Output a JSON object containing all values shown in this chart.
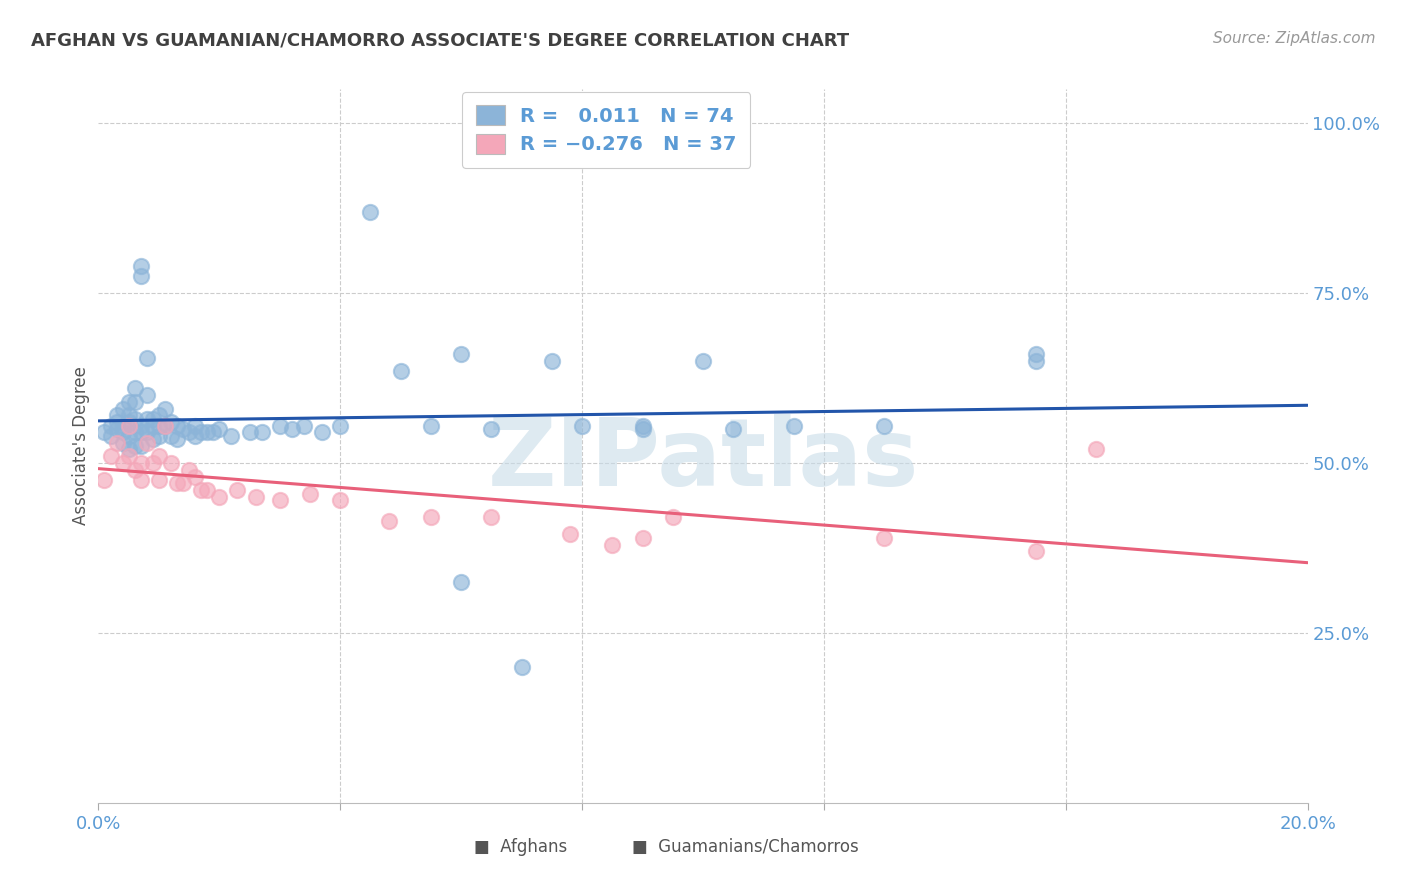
{
  "title": "AFGHAN VS GUAMANIAN/CHAMORRO ASSOCIATE'S DEGREE CORRELATION CHART",
  "source": "Source: ZipAtlas.com",
  "ylabel": "Associate's Degree",
  "legend_afghan": {
    "R": "0.011",
    "N": "74"
  },
  "legend_guam": {
    "R": "-0.276",
    "N": "37"
  },
  "color_afghan": "#8CB4D8",
  "color_guam": "#F4A7B9",
  "color_trend_afghan": "#2255AA",
  "color_trend_guam": "#E8607A",
  "color_axis_labels": "#5B9BD5",
  "color_title": "#404040",
  "watermark_color": "#D8E8F0",
  "xlim": [
    0.0,
    0.2
  ],
  "ylim": [
    0.0,
    1.05
  ],
  "afghan_x": [
    0.001,
    0.002,
    0.002,
    0.003,
    0.003,
    0.003,
    0.004,
    0.004,
    0.004,
    0.004,
    0.005,
    0.005,
    0.005,
    0.005,
    0.005,
    0.006,
    0.006,
    0.006,
    0.006,
    0.006,
    0.007,
    0.007,
    0.007,
    0.007,
    0.007,
    0.008,
    0.008,
    0.008,
    0.008,
    0.009,
    0.009,
    0.009,
    0.01,
    0.01,
    0.01,
    0.011,
    0.011,
    0.012,
    0.012,
    0.013,
    0.013,
    0.014,
    0.015,
    0.016,
    0.016,
    0.017,
    0.018,
    0.019,
    0.02,
    0.022,
    0.025,
    0.027,
    0.03,
    0.032,
    0.034,
    0.037,
    0.04,
    0.045,
    0.05,
    0.055,
    0.06,
    0.065,
    0.075,
    0.08,
    0.09,
    0.1,
    0.105,
    0.115,
    0.13,
    0.155,
    0.06,
    0.07,
    0.09,
    0.155
  ],
  "afghan_y": [
    0.545,
    0.54,
    0.555,
    0.57,
    0.56,
    0.55,
    0.58,
    0.555,
    0.545,
    0.53,
    0.59,
    0.57,
    0.56,
    0.54,
    0.52,
    0.61,
    0.59,
    0.565,
    0.545,
    0.525,
    0.79,
    0.775,
    0.555,
    0.545,
    0.525,
    0.655,
    0.6,
    0.565,
    0.545,
    0.565,
    0.555,
    0.535,
    0.57,
    0.555,
    0.54,
    0.58,
    0.555,
    0.56,
    0.54,
    0.555,
    0.535,
    0.55,
    0.545,
    0.54,
    0.555,
    0.545,
    0.545,
    0.545,
    0.55,
    0.54,
    0.545,
    0.545,
    0.555,
    0.55,
    0.555,
    0.545,
    0.555,
    0.87,
    0.635,
    0.555,
    0.66,
    0.55,
    0.65,
    0.555,
    0.555,
    0.65,
    0.55,
    0.555,
    0.555,
    0.65,
    0.325,
    0.2,
    0.55,
    0.66
  ],
  "guam_x": [
    0.001,
    0.002,
    0.003,
    0.004,
    0.005,
    0.005,
    0.006,
    0.007,
    0.007,
    0.008,
    0.009,
    0.01,
    0.01,
    0.011,
    0.012,
    0.013,
    0.014,
    0.015,
    0.016,
    0.017,
    0.018,
    0.02,
    0.023,
    0.026,
    0.03,
    0.035,
    0.04,
    0.048,
    0.055,
    0.065,
    0.078,
    0.085,
    0.09,
    0.095,
    0.13,
    0.155,
    0.165
  ],
  "guam_y": [
    0.475,
    0.51,
    0.53,
    0.5,
    0.555,
    0.51,
    0.49,
    0.5,
    0.475,
    0.53,
    0.5,
    0.475,
    0.51,
    0.555,
    0.5,
    0.47,
    0.47,
    0.49,
    0.48,
    0.46,
    0.46,
    0.45,
    0.46,
    0.45,
    0.445,
    0.455,
    0.445,
    0.415,
    0.42,
    0.42,
    0.395,
    0.38,
    0.39,
    0.42,
    0.39,
    0.37,
    0.52
  ]
}
